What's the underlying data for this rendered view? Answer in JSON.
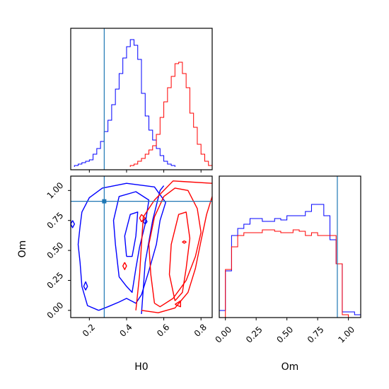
{
  "chart_data": {
    "type": "corner",
    "parameters": [
      "H0",
      "Om"
    ],
    "truth": {
      "H0": 0.28,
      "Om": 0.91
    },
    "colors": {
      "blue": "#0000ff",
      "red": "#ff0000",
      "truth": "#1f77b4"
    },
    "grid": false,
    "panels": [
      {
        "id": "hist_H0",
        "type": "step-histogram",
        "x": "H0",
        "xlim": [
          0.1,
          0.86
        ],
        "series": [
          {
            "color": "blue",
            "bin_start": 0.12,
            "bin_width": 0.02,
            "values": [
              1,
              2,
              3,
              4,
              5,
              9,
              13,
              18,
              25,
              33,
              44,
              55,
              66,
              77,
              85,
              90,
              86,
              76,
              52,
              36,
              26,
              19,
              13,
              8,
              4,
              2,
              1
            ]
          },
          {
            "color": "red",
            "bin_start": 0.42,
            "bin_width": 0.02,
            "values": [
              1,
              2,
              4,
              6,
              9,
              12,
              15,
              23,
              35,
              46,
              56,
              64,
              73,
              74,
              66,
              56,
              38,
              28,
              16,
              9,
              4,
              1
            ]
          }
        ]
      },
      {
        "id": "hist_Om",
        "type": "step-histogram",
        "x": "Om",
        "xlim": [
          -0.05,
          1.1
        ],
        "xticks": [
          "0.00",
          "0.25",
          "0.50",
          "0.75",
          "1.00"
        ],
        "series": [
          {
            "color": "blue",
            "bin_start": -0.05,
            "bin_width": 0.05,
            "values": [
              5,
              33,
              58,
              63,
              66,
              70,
              70,
              68,
              68,
              70,
              69,
              72,
              72,
              72,
              75,
              80,
              80,
              72,
              55,
              38,
              4,
              4,
              2
            ]
          },
          {
            "color": "red",
            "bin_start": 0.0,
            "bin_width": 0.05,
            "values": [
              34,
              50,
              58,
              60,
              60,
              60,
              62,
              62,
              61,
              60,
              60,
              62,
              61,
              58,
              60,
              58,
              58,
              58,
              38,
              2
            ]
          }
        ]
      },
      {
        "id": "contour_H0_Om",
        "type": "contour",
        "x": "H0",
        "y": "Om",
        "xlim": [
          0.1,
          0.86
        ],
        "ylim": [
          -0.06,
          1.12
        ],
        "xticks": [
          "0.2",
          "0.4",
          "0.6",
          "0.8"
        ],
        "yticks": [
          "0.00",
          "0.25",
          "0.50",
          "0.75",
          "1.00"
        ],
        "contours": [
          {
            "color": "blue",
            "points": [
              [
                0.25,
                0.0
              ],
              [
                0.19,
                0.04
              ],
              [
                0.16,
                0.2
              ],
              [
                0.15,
                0.4
              ],
              [
                0.14,
                0.55
              ],
              [
                0.15,
                0.7
              ],
              [
                0.16,
                0.82
              ],
              [
                0.2,
                0.94
              ],
              [
                0.27,
                1.02
              ],
              [
                0.4,
                1.06
              ],
              [
                0.55,
                1.03
              ],
              [
                0.61,
                0.9
              ],
              [
                0.58,
                0.75
              ],
              [
                0.56,
                0.55
              ],
              [
                0.52,
                0.33
              ],
              [
                0.48,
                0.13
              ],
              [
                0.45,
                0.06
              ],
              [
                0.4,
                0.1
              ],
              [
                0.36,
                0.07
              ],
              [
                0.3,
                0.03
              ],
              [
                0.25,
                0.0
              ]
            ]
          },
          {
            "color": "blue",
            "points": [
              [
                0.36,
                0.28
              ],
              [
                0.34,
                0.55
              ],
              [
                0.33,
                0.75
              ],
              [
                0.36,
                0.95
              ],
              [
                0.45,
                0.99
              ],
              [
                0.52,
                0.92
              ],
              [
                0.5,
                0.72
              ],
              [
                0.47,
                0.53
              ],
              [
                0.45,
                0.35
              ],
              [
                0.43,
                0.15
              ],
              [
                0.4,
                0.2
              ],
              [
                0.36,
                0.28
              ]
            ]
          },
          {
            "color": "blue",
            "points": [
              [
                0.4,
                0.45
              ],
              [
                0.39,
                0.62
              ],
              [
                0.42,
                0.8
              ],
              [
                0.46,
                0.82
              ],
              [
                0.45,
                0.62
              ],
              [
                0.43,
                0.45
              ],
              [
                0.4,
                0.45
              ]
            ]
          },
          {
            "color": "blue",
            "points": [
              [
                0.11,
                0.75
              ],
              [
                0.12,
                0.72
              ],
              [
                0.11,
                0.69
              ],
              [
                0.1,
                0.72
              ],
              [
                0.11,
                0.75
              ]
            ]
          },
          {
            "color": "blue",
            "points": [
              [
                0.18,
                0.24
              ],
              [
                0.19,
                0.2
              ],
              [
                0.18,
                0.17
              ],
              [
                0.17,
                0.2
              ],
              [
                0.18,
                0.24
              ]
            ]
          },
          {
            "color": "blue",
            "points": [
              [
                0.5,
                0.77
              ],
              [
                0.51,
                0.74
              ],
              [
                0.5,
                0.72
              ],
              [
                0.49,
                0.74
              ],
              [
                0.5,
                0.77
              ]
            ]
          },
          {
            "color": "blue",
            "points": [
              [
                0.48,
                -0.03
              ],
              [
                0.5,
                0.4
              ],
              [
                0.54,
                0.75
              ],
              [
                0.58,
                1.0
              ],
              [
                0.6,
                1.04
              ]
            ]
          },
          {
            "color": "red",
            "points": [
              [
                0.45,
                0.0
              ],
              [
                0.47,
                0.3
              ],
              [
                0.48,
                0.55
              ],
              [
                0.49,
                0.78
              ],
              [
                0.55,
                0.92
              ],
              [
                0.6,
                1.0
              ],
              [
                0.65,
                1.08
              ],
              [
                0.86,
                1.06
              ]
            ]
          },
          {
            "color": "red",
            "points": [
              [
                0.48,
                0.0
              ],
              [
                0.57,
                -0.02
              ],
              [
                0.66,
                0.02
              ],
              [
                0.73,
                0.15
              ],
              [
                0.77,
                0.35
              ],
              [
                0.8,
                0.58
              ],
              [
                0.83,
                0.8
              ],
              [
                0.86,
                0.95
              ]
            ]
          },
          {
            "color": "red",
            "points": [
              [
                0.55,
                0.06
              ],
              [
                0.53,
                0.3
              ],
              [
                0.52,
                0.55
              ],
              [
                0.55,
                0.78
              ],
              [
                0.6,
                0.95
              ],
              [
                0.66,
                1.02
              ],
              [
                0.73,
                1.0
              ],
              [
                0.78,
                0.85
              ],
              [
                0.8,
                0.65
              ],
              [
                0.77,
                0.45
              ],
              [
                0.72,
                0.25
              ],
              [
                0.65,
                0.1
              ],
              [
                0.58,
                0.03
              ],
              [
                0.55,
                0.06
              ]
            ]
          },
          {
            "color": "red",
            "points": [
              [
                0.66,
                0.08
              ],
              [
                0.63,
                0.3
              ],
              [
                0.64,
                0.55
              ],
              [
                0.68,
                0.8
              ],
              [
                0.72,
                0.82
              ],
              [
                0.74,
                0.6
              ],
              [
                0.72,
                0.35
              ],
              [
                0.7,
                0.15
              ],
              [
                0.66,
                0.08
              ]
            ]
          },
          {
            "color": "red",
            "points": [
              [
                0.66,
                0.05
              ],
              [
                0.69,
                0.08
              ],
              [
                0.69,
                0.03
              ],
              [
                0.66,
                0.05
              ]
            ]
          },
          {
            "color": "red",
            "points": [
              [
                0.48,
                0.8
              ],
              [
                0.5,
                0.77
              ],
              [
                0.48,
                0.74
              ],
              [
                0.47,
                0.77
              ],
              [
                0.48,
                0.8
              ]
            ]
          },
          {
            "color": "red",
            "points": [
              [
                0.39,
                0.4
              ],
              [
                0.4,
                0.37
              ],
              [
                0.39,
                0.34
              ],
              [
                0.38,
                0.37
              ],
              [
                0.39,
                0.4
              ]
            ]
          },
          {
            "color": "red",
            "points": [
              [
                0.71,
                0.58
              ],
              [
                0.72,
                0.57
              ],
              [
                0.71,
                0.56
              ],
              [
                0.7,
                0.57
              ],
              [
                0.71,
                0.58
              ]
            ]
          }
        ]
      }
    ]
  },
  "axes": {
    "x_label_1": "H0",
    "x_label_2": "Om",
    "y_label": "Om"
  },
  "ticks": {
    "h0": [
      "0.2",
      "0.4",
      "0.6",
      "0.8"
    ],
    "om_y": [
      "0.00",
      "0.25",
      "0.50",
      "0.75",
      "1.00"
    ],
    "om_x": [
      "0.00",
      "0.25",
      "0.50",
      "0.75",
      "1.00"
    ]
  }
}
